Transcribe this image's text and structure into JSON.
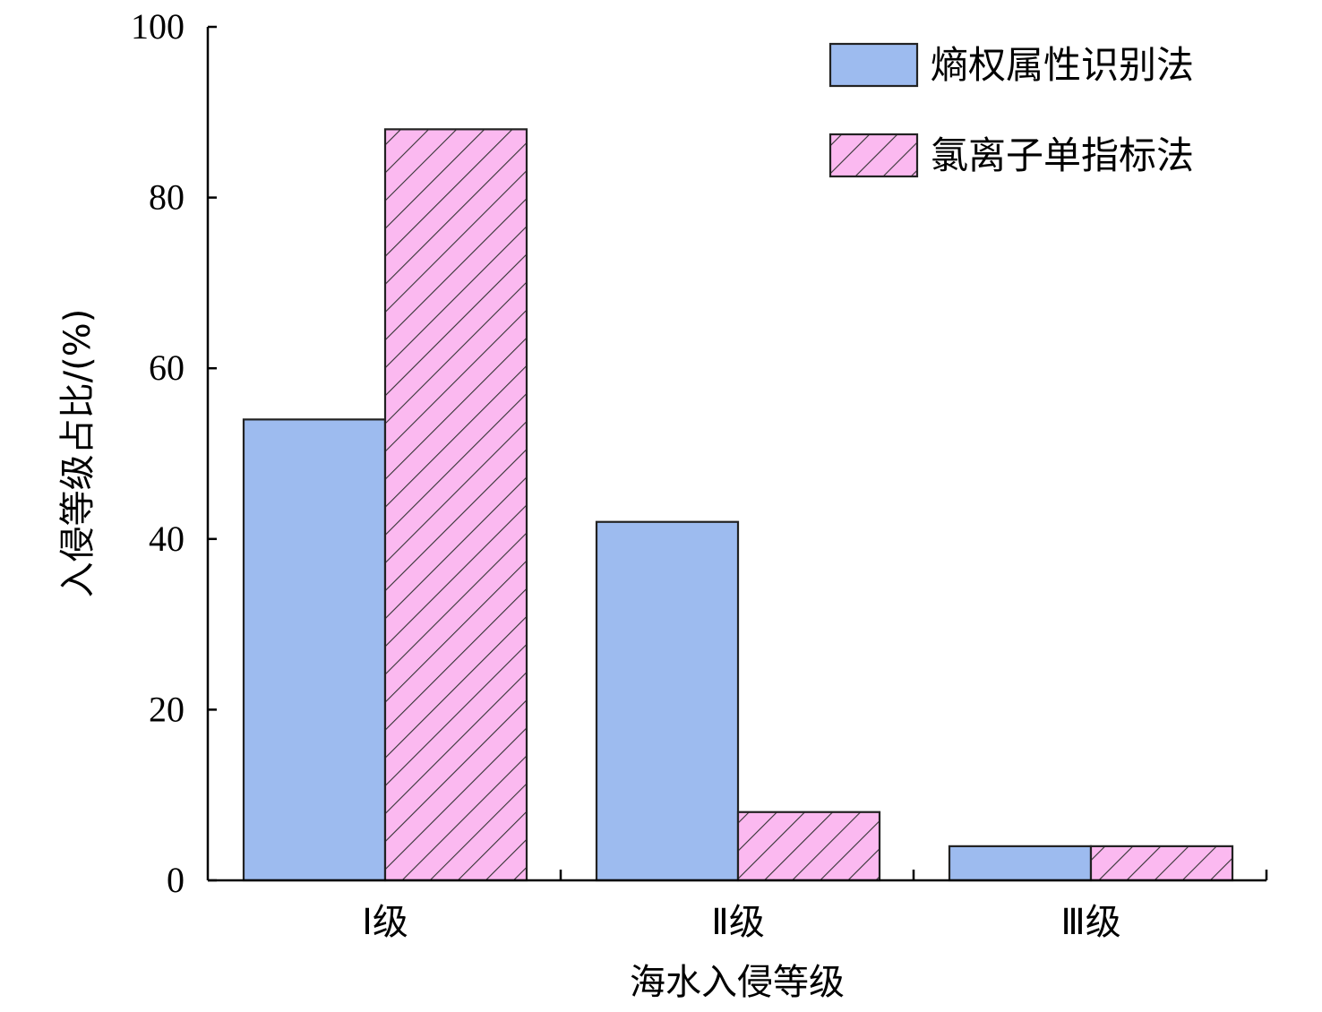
{
  "chart_data": {
    "type": "bar",
    "categories": [
      "Ⅰ级",
      "Ⅱ级",
      "Ⅲ级"
    ],
    "series": [
      {
        "name": "熵权属性识别法",
        "values": [
          54,
          42,
          4
        ],
        "color": "#9dbbef",
        "pattern": "solid"
      },
      {
        "name": "氯离子单指标法",
        "values": [
          88,
          8,
          4
        ],
        "color": "#fbb9f0",
        "pattern": "diagonal-hatch"
      }
    ],
    "xlabel": "海水入侵等级",
    "ylabel": "入侵等级占比/(%)",
    "ylim": [
      0,
      100
    ],
    "yticks": [
      0,
      20,
      40,
      60,
      80,
      100
    ],
    "grid": false,
    "legend_position": "top-right"
  }
}
